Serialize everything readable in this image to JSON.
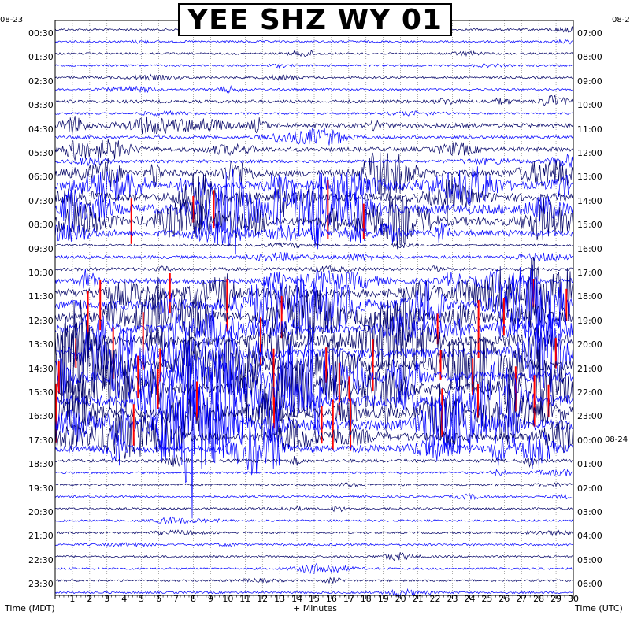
{
  "chart_data": {
    "type": "heliplot",
    "title": "YEE SHZ WY 01",
    "left_date": "08-23",
    "right_date_start": "08-2",
    "right_date_next": "08-24",
    "xlabel": "+ Minutes",
    "left_axis_label": "Time (MDT)",
    "right_axis_label": "Time (UTC)",
    "x_range": [
      0,
      30
    ],
    "x_ticks": [
      "1",
      "2",
      "3",
      "4",
      "5",
      "6",
      "7",
      "8",
      "9",
      "10",
      "11",
      "12",
      "13",
      "14",
      "15",
      "16",
      "17",
      "18",
      "19",
      "20",
      "21",
      "22",
      "23",
      "24",
      "25",
      "26",
      "27",
      "28",
      "29",
      "30"
    ],
    "left_hour_labels": [
      "00:30",
      "01:30",
      "02:30",
      "03:30",
      "04:30",
      "05:30",
      "06:30",
      "07:30",
      "08:30",
      "09:30",
      "10:30",
      "11:30",
      "12:30",
      "13:30",
      "14:30",
      "15:30",
      "16:30",
      "17:30",
      "18:30",
      "19:30",
      "20:30",
      "21:30",
      "22:30",
      "23:30"
    ],
    "right_hour_labels": [
      "07:00",
      "08:00",
      "09:00",
      "10:00",
      "11:00",
      "12:00",
      "13:00",
      "14:00",
      "15:00",
      "16:00",
      "17:00",
      "18:00",
      "19:00",
      "20:00",
      "21:00",
      "22:00",
      "23:00",
      "00:00",
      "01:00",
      "02:00",
      "03:00",
      "04:00",
      "05:00",
      "06:00"
    ],
    "trace_colors": [
      "#000066",
      "#0000ff"
    ],
    "clip_color": "#ff0000",
    "trace_count": 48,
    "trace_activity": [
      1,
      1,
      1,
      1,
      1,
      1,
      2,
      1,
      3,
      2,
      3,
      2,
      5,
      6,
      6,
      8,
      7,
      5,
      1,
      2,
      2,
      4,
      7,
      8,
      8,
      7,
      7,
      8,
      9,
      9,
      9,
      9,
      8,
      9,
      6,
      6,
      2,
      1,
      1,
      1,
      1,
      1,
      1,
      1,
      1,
      1,
      1,
      1
    ]
  }
}
